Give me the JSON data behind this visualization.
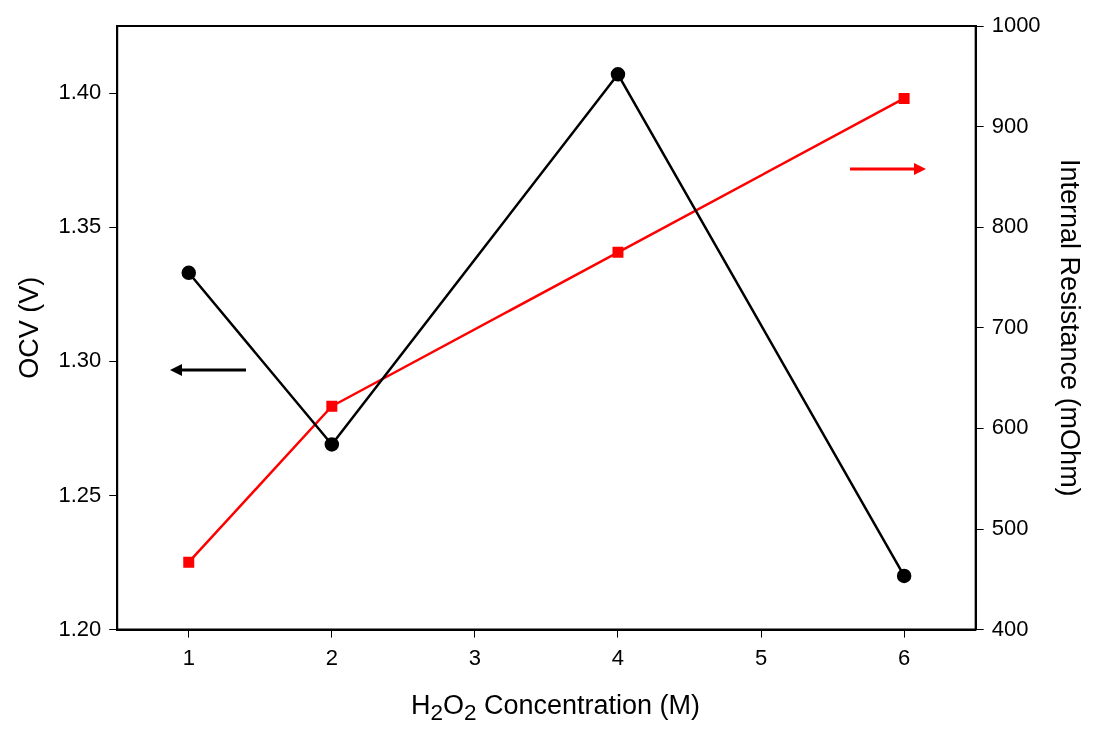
{
  "chart_data": {
    "type": "line",
    "xlabel": "H$_{2}$O$_{2}$ Concentration (M)",
    "ylabel": "OCV (V)",
    "y2label": "Internal Resistance (mOhm)",
    "x": [
      1,
      2,
      4,
      6
    ],
    "series": [
      {
        "color": "#000000",
        "values": [
          1.333,
          1.269,
          1.407,
          1.22
        ],
        "marker": "circle"
      },
      {
        "color": "#ff0000",
        "values": [
          467,
          622,
          775,
          928
        ],
        "axis": "y2",
        "marker": "square"
      }
    ],
    "xlim": [
      0.5,
      6.5
    ],
    "xticks": [
      1,
      2,
      3,
      4,
      5,
      6
    ],
    "ylim": [
      1.2,
      1.425
    ],
    "yticks": [
      {
        "value": 1.2,
        "label": "1.20"
      },
      {
        "value": 1.25,
        "label": "1.25"
      },
      {
        "value": 1.3,
        "label": "1.30"
      },
      {
        "value": 1.35,
        "label": "1.35"
      },
      {
        "value": 1.4,
        "label": "1.40"
      }
    ],
    "y2lim": [
      400,
      1000
    ],
    "y2ticks": [
      400,
      500,
      600,
      700,
      800,
      900,
      1000
    ],
    "grid": false,
    "legend": false,
    "line_style": "solid"
  }
}
